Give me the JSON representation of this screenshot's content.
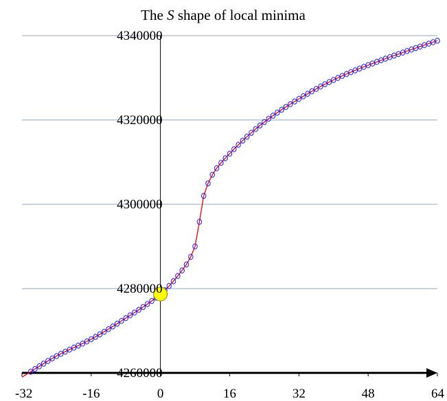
{
  "chart_data": {
    "type": "line",
    "title": {
      "prefix": "The ",
      "italic": "S",
      "suffix": " shape of local minima"
    },
    "xlabel": "",
    "ylabel": "",
    "xlim": [
      -32,
      64
    ],
    "ylim": [
      4260000,
      4340000
    ],
    "x_ticks": [
      -32,
      -16,
      0,
      16,
      32,
      48,
      64
    ],
    "y_ticks": [
      4260000,
      4280000,
      4300000,
      4320000,
      4340000
    ],
    "y_gridlines": true,
    "x_axis_arrow": true,
    "colors": {
      "line": "#ff0000",
      "marker": "#1a1aff",
      "gridline": "#8ea9c8",
      "highlight_fill": "#ffff00",
      "highlight_stroke": "#888800"
    },
    "marker": "open-circle",
    "highlight_point": {
      "x": 0,
      "y": 4278700
    },
    "curve_anchors": [
      {
        "x": -32,
        "y": 4259000
      },
      {
        "x": -24,
        "y": 4264000
      },
      {
        "x": -16,
        "y": 4268000
      },
      {
        "x": -8,
        "y": 4273000
      },
      {
        "x": 0,
        "y": 4278700
      },
      {
        "x": 4,
        "y": 4283000
      },
      {
        "x": 8,
        "y": 4290000
      },
      {
        "x": 10,
        "y": 4302000
      },
      {
        "x": 12,
        "y": 4307000
      },
      {
        "x": 16,
        "y": 4312000
      },
      {
        "x": 24,
        "y": 4319500
      },
      {
        "x": 32,
        "y": 4325000
      },
      {
        "x": 40,
        "y": 4329500
      },
      {
        "x": 48,
        "y": 4333000
      },
      {
        "x": 56,
        "y": 4336000
      },
      {
        "x": 64,
        "y": 4338800
      }
    ],
    "sample_step": 1
  }
}
